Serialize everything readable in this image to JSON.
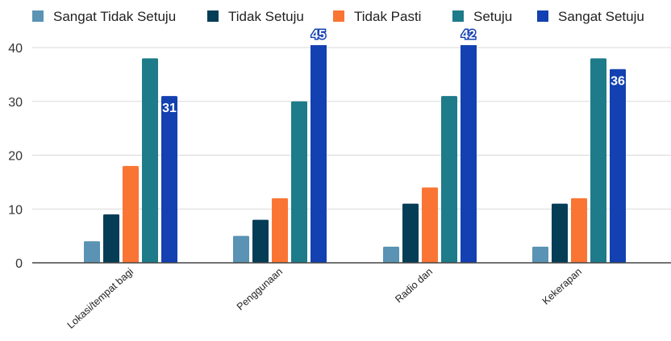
{
  "chart_data": {
    "type": "bar",
    "categories": [
      "Lokasi/tempat bagi",
      "Penggunaan",
      "Radio dan",
      "Kekerapan"
    ],
    "series": [
      {
        "name": "Sangat Tidak Setuju",
        "color": "#5a93b3",
        "values": [
          4,
          5,
          3,
          3
        ]
      },
      {
        "name": "Tidak Setuju",
        "color": "#053d57",
        "values": [
          9,
          8,
          11,
          11
        ]
      },
      {
        "name": "Tidak Pasti",
        "color": "#fa7534",
        "values": [
          18,
          12,
          14,
          12
        ]
      },
      {
        "name": "Setuju",
        "color": "#1e7b89",
        "values": [
          38,
          30,
          31,
          38
        ]
      },
      {
        "name": "Sangat Setuju",
        "color": "#1341b1",
        "values": [
          31,
          45,
          42,
          36
        ]
      }
    ],
    "data_labels": [
      {
        "series": 4,
        "category": 0,
        "text": "31"
      },
      {
        "series": 4,
        "category": 1,
        "text": "45"
      },
      {
        "series": 4,
        "category": 2,
        "text": "42"
      },
      {
        "series": 4,
        "category": 3,
        "text": "36"
      }
    ],
    "yticks": [
      0,
      10,
      20,
      30,
      40
    ],
    "ylim": [
      0,
      40
    ],
    "grid": true,
    "legend": "top",
    "title": "",
    "xlabel": "",
    "ylabel": ""
  }
}
